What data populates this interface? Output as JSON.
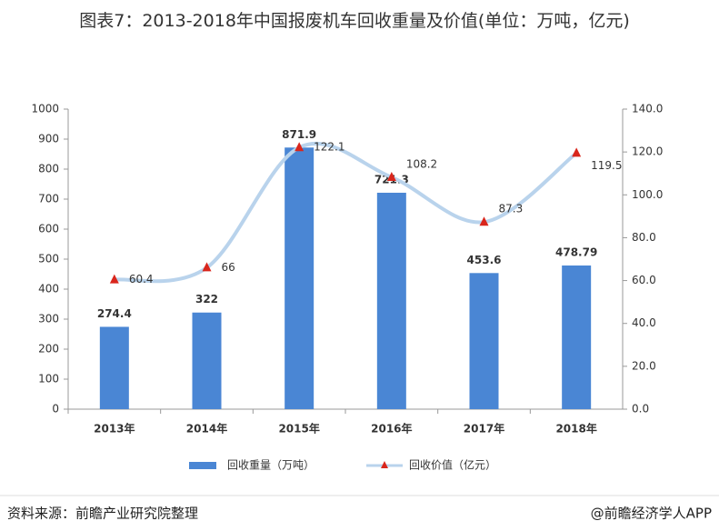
{
  "chart_data": {
    "type": "bar",
    "title": "图表7：2013-2018年中国报废机车回收重量及价值(单位：万吨，亿元)",
    "categories": [
      "2013年",
      "2014年",
      "2015年",
      "2016年",
      "2017年",
      "2018年"
    ],
    "series": [
      {
        "name": "回收重量（万吨）",
        "type": "bar",
        "color": "#4a86d4",
        "values": [
          274.4,
          322,
          871.9,
          721.3,
          453.6,
          478.79
        ]
      },
      {
        "name": "回收价值（亿元）",
        "type": "line",
        "axis": "y2",
        "color": "#b9d3ec",
        "marker_color": "#d9261c",
        "values": [
          60.4,
          66,
          122.1,
          108.2,
          87.3,
          119.5
        ]
      }
    ],
    "ylim": [
      0,
      1000
    ],
    "yticks": [
      0,
      100,
      200,
      300,
      400,
      500,
      600,
      700,
      800,
      900,
      1000
    ],
    "y2lim": [
      0,
      140
    ],
    "y2ticks": [
      {
        "value": 0,
        "label": "0.0"
      },
      {
        "value": 20,
        "label": "20.0"
      },
      {
        "value": 40,
        "label": "40.0"
      },
      {
        "value": 60,
        "label": "60.0"
      },
      {
        "value": 80,
        "label": "80.0"
      },
      {
        "value": 100,
        "label": "100.0"
      },
      {
        "value": 120,
        "label": "120.0"
      },
      {
        "value": 140,
        "label": "140.0"
      }
    ],
    "legend": "bottom",
    "source": "资料来源：前瞻产业研究院整理",
    "credit": "@前瞻经济学人APP"
  }
}
